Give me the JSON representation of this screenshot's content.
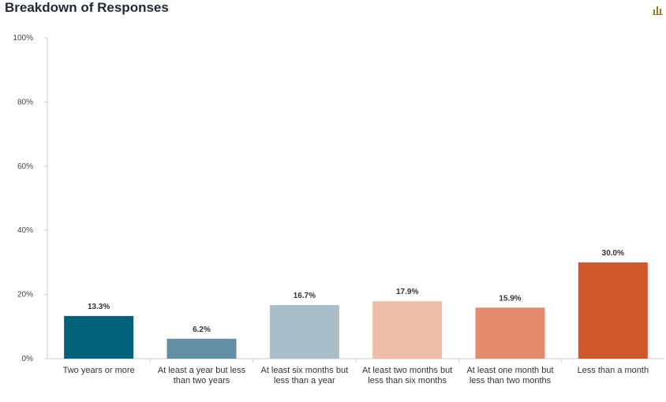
{
  "header": {
    "title": "Breakdown of Responses",
    "chart_icon": "bar-chart-icon"
  },
  "chart_data": {
    "type": "bar",
    "title": "Breakdown of Responses",
    "xlabel": "",
    "ylabel": "",
    "ylim": [
      0,
      100
    ],
    "y_ticks": [
      "0%",
      "20%",
      "40%",
      "60%",
      "80%",
      "100%"
    ],
    "y_tick_values": [
      0,
      20,
      40,
      60,
      80,
      100
    ],
    "grid": false,
    "legend": "none",
    "categories": [
      "Two years or more",
      "At least a year but less than two years",
      "At least six months but less than a year",
      "At least two months but less than six months",
      "At least one month but less than two months",
      "Less than a month"
    ],
    "values": [
      13.3,
      6.2,
      16.7,
      17.9,
      15.9,
      30.0
    ],
    "value_labels": [
      "13.3%",
      "6.2%",
      "16.7%",
      "17.9%",
      "15.9%",
      "30.0%"
    ],
    "colors": [
      "#02617a",
      "#628fa3",
      "#a9bec8",
      "#efbca8",
      "#e38b6c",
      "#d2572d"
    ]
  },
  "colors": {
    "axis": "#cccccc",
    "title": "#1f2a36"
  }
}
